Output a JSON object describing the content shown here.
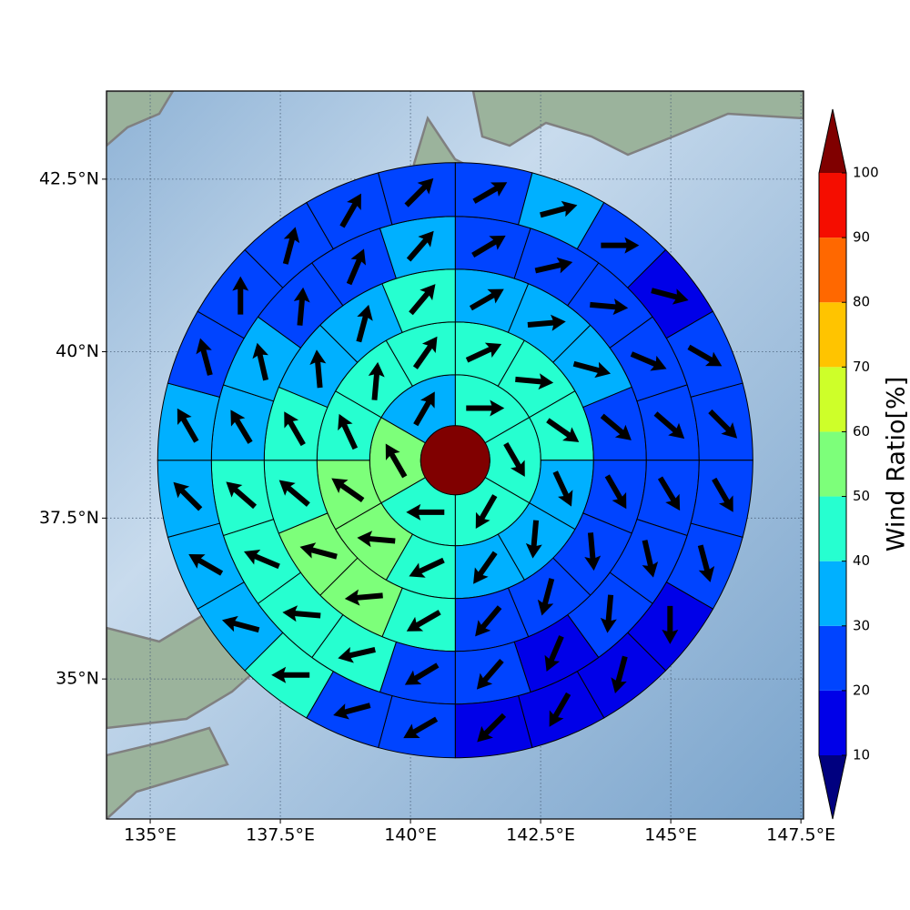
{
  "chart_data": {
    "type": "polar_grid_map",
    "projection": "mercator",
    "xlim": [
      134.16,
      147.55
    ],
    "ylim": [
      32.76,
      43.74
    ],
    "xticks": [
      {
        "value": 135,
        "label": "135°E"
      },
      {
        "value": 137.5,
        "label": "137.5°E"
      },
      {
        "value": 140,
        "label": "140°E"
      },
      {
        "value": 142.5,
        "label": "142.5°E"
      },
      {
        "value": 145,
        "label": "145°E"
      },
      {
        "value": 147.5,
        "label": "147.5°E"
      }
    ],
    "yticks": [
      {
        "value": 35,
        "label": "35°N"
      },
      {
        "value": 37.5,
        "label": "37.5°N"
      },
      {
        "value": 40,
        "label": "40°N"
      },
      {
        "value": 42.5,
        "label": "42.5°N"
      }
    ],
    "grid": true,
    "center_lon": 140.86,
    "center_lat": 38.38,
    "center_value": 110,
    "rings": [
      {
        "values": [
          45,
          45,
          45,
          45,
          55,
          35
        ],
        "directions": [
          90,
          150,
          210,
          270,
          330,
          30
        ]
      },
      {
        "values": [
          45,
          45,
          45,
          35,
          35,
          35,
          45,
          55,
          55,
          45,
          45,
          45
        ],
        "directions": [
          65,
          95,
          125,
          155,
          185,
          215,
          245,
          275,
          305,
          335,
          5,
          35
        ]
      },
      {
        "values": [
          35,
          35,
          35,
          25,
          25,
          25,
          25,
          25,
          45,
          55,
          55,
          45,
          45,
          35,
          35,
          45
        ],
        "directions": [
          60,
          85,
          105,
          130,
          150,
          175,
          195,
          220,
          240,
          265,
          285,
          310,
          330,
          355,
          15,
          40
        ]
      },
      {
        "values": [
          25,
          25,
          25,
          25,
          25,
          25,
          25,
          25,
          15,
          25,
          25,
          45,
          45,
          45,
          45,
          35,
          35,
          25,
          25,
          35
        ],
        "directions": [
          59,
          77,
          95,
          113,
          131,
          149,
          167,
          185,
          203,
          221,
          239,
          257,
          275,
          293,
          311,
          329,
          347,
          5,
          23,
          41
        ]
      },
      {
        "values": [
          25,
          35,
          25,
          15,
          25,
          25,
          25,
          25,
          15,
          15,
          15,
          15,
          25,
          25,
          45,
          35,
          35,
          35,
          35,
          25,
          25,
          25,
          25,
          25
        ],
        "directions": [
          60,
          75,
          90,
          105,
          120,
          135,
          150,
          165,
          180,
          195,
          210,
          225,
          240,
          255,
          270,
          285,
          300,
          315,
          330,
          345,
          0,
          15,
          30,
          45
        ]
      }
    ],
    "colorbar": {
      "label": "Wind Ratio[%]",
      "levels": [
        10,
        20,
        30,
        40,
        50,
        60,
        70,
        80,
        90,
        100
      ],
      "under_color": "#00007f",
      "colors": [
        "#0000e8",
        "#0044ff",
        "#00b0ff",
        "#26ffd0",
        "#7dff7a",
        "#ceff29",
        "#ffc400",
        "#ff6800",
        "#f50d00"
      ],
      "over_color": "#800000"
    }
  }
}
